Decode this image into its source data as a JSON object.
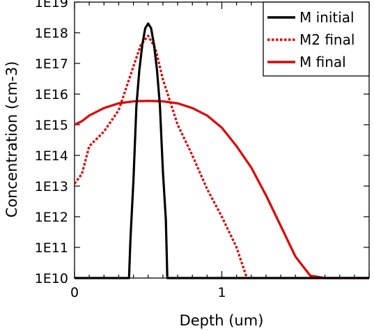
{
  "chart_data": {
    "type": "line",
    "xlabel": "Depth (um)",
    "ylabel": "Concentration (cm-3)",
    "y_scale": "log",
    "xlim": [
      0,
      2
    ],
    "ylim": [
      10000000000.0,
      1e+19
    ],
    "x_ticks": [
      0,
      1
    ],
    "x_tick_labels": [
      "0",
      "1"
    ],
    "y_ticks": [
      10000000000.0,
      100000000000.0,
      1000000000000.0,
      10000000000000.0,
      100000000000000.0,
      1000000000000000.0,
      1e+16,
      1e+17,
      1e+18,
      1e+19
    ],
    "y_tick_labels": [
      "1E10",
      "1E11",
      "1E12",
      "1E13",
      "1E14",
      "1E15",
      "1E16",
      "1E17",
      "1E18",
      "1E19"
    ],
    "legend_position": "top-right",
    "series": [
      {
        "name": "M initial",
        "color": "#000000",
        "style": "solid",
        "x": [
          0.0,
          0.37,
          0.38,
          0.4,
          0.42,
          0.44,
          0.46,
          0.48,
          0.5,
          0.52,
          0.54,
          0.56,
          0.58,
          0.6,
          0.62,
          0.63,
          2.0
        ],
        "y": [
          10000000000.0,
          10000000000.0,
          200000000000.0,
          15000000000000.0,
          4000000000000000.0,
          6e+16,
          4e+17,
          1.4e+18,
          2e+18,
          1.4e+18,
          4e+17,
          6e+16,
          4000000000000000.0,
          30000000000000.0,
          800000000000.0,
          10000000000.0,
          10000000000.0
        ]
      },
      {
        "name": "M2 final",
        "color": "#e00000",
        "style": "dotted",
        "x": [
          0.0,
          0.05,
          0.1,
          0.2,
          0.3,
          0.4,
          0.45,
          0.5,
          0.55,
          0.6,
          0.7,
          0.8,
          0.9,
          1.0,
          1.1,
          1.17
        ],
        "y": [
          12000000000000.0,
          25000000000000.0,
          200000000000000.0,
          600000000000000.0,
          3000000000000000.0,
          8e+16,
          4e+17,
          8e+17,
          3e+17,
          3e+16,
          1000000000000000.0,
          100000000000000.0,
          8000000000000.0,
          1000000000000.0,
          100000000000.0,
          10000000000.0
        ]
      },
      {
        "name": "M final",
        "color": "#e00000",
        "style": "solid",
        "x": [
          0.0,
          0.05,
          0.1,
          0.2,
          0.3,
          0.4,
          0.5,
          0.6,
          0.7,
          0.8,
          0.9,
          1.0,
          1.1,
          1.2,
          1.3,
          1.4,
          1.5,
          1.6,
          1.7,
          2.0
        ],
        "y": [
          1000000000000000.0,
          1300000000000000.0,
          2000000000000000.0,
          3500000000000000.0,
          5000000000000000.0,
          5800000000000000.0,
          6000000000000000.0,
          5800000000000000.0,
          5000000000000000.0,
          3500000000000000.0,
          2000000000000000.0,
          800000000000000.0,
          200000000000000.0,
          40000000000000.0,
          5000000000000.0,
          500000000000.0,
          50000000000.0,
          12000000000.0,
          10000000000.0,
          10000000000.0
        ]
      }
    ]
  }
}
